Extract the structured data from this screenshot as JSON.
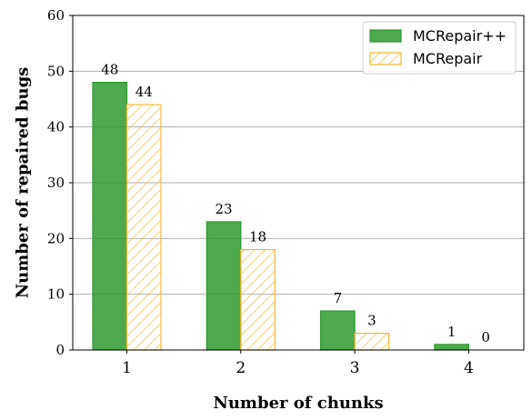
{
  "chart_data": {
    "type": "bar",
    "categories": [
      "1",
      "2",
      "3",
      "4"
    ],
    "series": [
      {
        "name": "MCRepair++",
        "values": [
          48,
          23,
          7,
          1
        ],
        "color": "#2e9a2e",
        "fill": "solid"
      },
      {
        "name": "MCRepair",
        "values": [
          44,
          18,
          3,
          0
        ],
        "color": "#f5b731",
        "fill": "hatched"
      }
    ],
    "xlabel": "Number of chunks",
    "ylabel": "Number of repaired bugs",
    "ylim": [
      0,
      60
    ],
    "yticks": [
      0,
      10,
      20,
      30,
      40,
      50,
      60
    ],
    "grid": "horizontal",
    "legend_position": "top-right",
    "data_labels": true
  }
}
